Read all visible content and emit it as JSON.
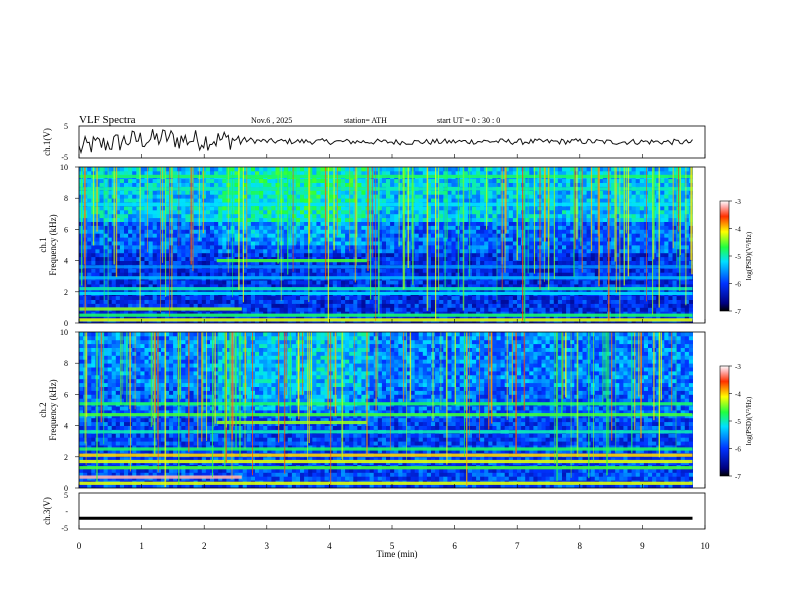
{
  "header": {
    "title": "VLF  Spectra",
    "date": "Nov.6  , 2025",
    "station": "station= ATH",
    "start_ut": "start  UT  =    0  : 30 : 0"
  },
  "colors": {
    "trace": "#111111",
    "axis": "#000000",
    "noise_bg": "#0a2fcc"
  },
  "chart_data": [
    {
      "id": "ch1-voltage",
      "type": "line",
      "ylabel": "ch.1(V)",
      "ylim": [
        -5,
        5
      ],
      "yticks": [
        "5",
        "-5"
      ],
      "xlim": [
        0,
        10
      ],
      "x": [
        0.0,
        0.2,
        0.4,
        0.6,
        0.8,
        1.0,
        1.2,
        1.4,
        1.6,
        1.8,
        2.0,
        2.2,
        2.5,
        3.0,
        3.5,
        4.0,
        4.5,
        5.0,
        5.5,
        6.0,
        6.5,
        7.0,
        7.5,
        8.0,
        8.5,
        9.0,
        9.5,
        9.8
      ],
      "values": [
        -2.2,
        -1.0,
        -0.6,
        -0.2,
        0.6,
        0.8,
        0.9,
        1.5,
        0.7,
        0.8,
        0.6,
        0.7,
        0.8,
        0.2,
        0.2,
        0.1,
        0.1,
        0.0,
        0.0,
        0.1,
        0.2,
        0.1,
        0.1,
        0.2,
        0.0,
        0.1,
        0.0,
        -0.1
      ]
    },
    {
      "id": "ch1-spectrogram",
      "type": "heatmap",
      "ylabel": "ch.1\nFrequency  (kHz)",
      "ylim": [
        0,
        10
      ],
      "yticks": [
        "10",
        "8",
        "6",
        "4",
        "2",
        "0"
      ],
      "xlim": [
        0,
        10
      ],
      "colorbar": {
        "label": "log(PSD)(V²/Hz)",
        "range": [
          -7,
          -3
        ],
        "ticks": [
          "-3",
          "-4",
          "-5",
          "-6",
          "-7"
        ]
      },
      "bands": [
        {
          "f": 9.4,
          "x0": 0,
          "x1": 10,
          "level": 0.55
        },
        {
          "f": 8.6,
          "x0": 0,
          "x1": 10,
          "level": 0.5
        },
        {
          "f": 7.6,
          "x0": 0,
          "x1": 10,
          "level": 0.45
        },
        {
          "f": 4.0,
          "x0": 2.2,
          "x1": 4.6,
          "level": 0.6
        },
        {
          "f": 3.6,
          "x0": 0,
          "x1": 10,
          "level": 0.35
        },
        {
          "f": 2.9,
          "x0": 0,
          "x1": 10,
          "level": 0.4
        },
        {
          "f": 2.2,
          "x0": 0,
          "x1": 10,
          "level": 0.5
        },
        {
          "f": 1.9,
          "x0": 0,
          "x1": 10,
          "level": 0.45
        },
        {
          "f": 0.9,
          "x0": 0,
          "x1": 2.6,
          "level": 0.65
        },
        {
          "f": 0.5,
          "x0": 0,
          "x1": 10,
          "level": 0.55
        },
        {
          "f": 0.2,
          "x0": 0,
          "x1": 10,
          "level": 0.7
        }
      ]
    },
    {
      "id": "ch2-spectrogram",
      "type": "heatmap",
      "ylabel": "ch.2\nFrequency  (kHz)",
      "ylim": [
        0,
        10
      ],
      "yticks": [
        "10",
        "8",
        "6",
        "4",
        "2",
        "0"
      ],
      "xlim": [
        0,
        10
      ],
      "colorbar": {
        "label": "log(PSD)(V²/Hz)",
        "range": [
          -7,
          -3
        ],
        "ticks": [
          "-3",
          "-4",
          "-5",
          "-6",
          "-7"
        ]
      },
      "bands": [
        {
          "f": 5.4,
          "x0": 0,
          "x1": 10,
          "level": 0.55
        },
        {
          "f": 4.7,
          "x0": 0,
          "x1": 10,
          "level": 0.6
        },
        {
          "f": 4.2,
          "x0": 2.2,
          "x1": 4.6,
          "level": 0.65
        },
        {
          "f": 3.6,
          "x0": 0,
          "x1": 10,
          "level": 0.5
        },
        {
          "f": 2.5,
          "x0": 0,
          "x1": 10,
          "level": 0.55
        },
        {
          "f": 2.1,
          "x0": 0,
          "x1": 10,
          "level": 0.75
        },
        {
          "f": 1.7,
          "x0": 0,
          "x1": 10,
          "level": 0.7
        },
        {
          "f": 1.3,
          "x0": 0,
          "x1": 10,
          "level": 0.6
        },
        {
          "f": 0.7,
          "x0": 0,
          "x1": 2.6,
          "level": 0.95
        },
        {
          "f": 0.3,
          "x0": 0,
          "x1": 10,
          "level": 0.7
        }
      ]
    },
    {
      "id": "ch3-voltage",
      "type": "line",
      "ylabel": "ch.3(V)",
      "ylim": [
        -5,
        5
      ],
      "yticks": [
        "5",
        "-",
        "-5"
      ],
      "xlim": [
        0,
        10
      ],
      "x": [
        0.0,
        9.8
      ],
      "values": [
        -2.0,
        -2.0
      ]
    }
  ],
  "xaxis": {
    "label": "Time  (min)",
    "ticks": [
      "0",
      "1",
      "2",
      "3",
      "4",
      "5",
      "6",
      "7",
      "8",
      "9",
      "10"
    ]
  }
}
